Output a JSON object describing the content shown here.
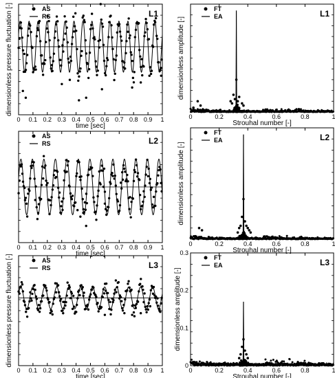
{
  "chart_data": [
    {
      "id": "L1-time",
      "type": "scatter",
      "title": "L1",
      "xlabel": "time [sec]",
      "ylabel": "dimensionless pressure fluctuation [-]",
      "xlim": [
        0,
        1
      ],
      "ylim": [
        -0.8,
        0.5
      ],
      "xticks": [
        0,
        0.1,
        0.2,
        0.3,
        0.4,
        0.5,
        0.6,
        0.7,
        0.8,
        0.9,
        1
      ],
      "xtick_labels": [
        "0",
        "0.1",
        "0.2",
        "0.3",
        "0.4",
        "0.5",
        "0.6",
        "0.7",
        "0.8",
        "0.9",
        "1"
      ],
      "legend": [
        "AS",
        "RS"
      ],
      "legend_position": "top-left",
      "series": [
        {
          "name": "AS",
          "style": "dots",
          "f": 16,
          "amp": 0.3,
          "noise": 0.16,
          "n": 200,
          "seed": 11,
          "outliers": [
            [
              0.03,
              -0.52
            ],
            [
              0.05,
              -0.6
            ],
            [
              0.42,
              -0.63
            ],
            [
              0.47,
              -0.6
            ],
            [
              0.58,
              -0.5
            ],
            [
              0.79,
              -0.48
            ],
            [
              0.85,
              -0.42
            ],
            [
              0.99,
              -0.25
            ]
          ]
        },
        {
          "name": "RS",
          "style": "line",
          "f": 16,
          "amp": 0.3,
          "phase": 0.5
        }
      ]
    },
    {
      "id": "L1-spec",
      "type": "scatter",
      "title": "L1",
      "xlabel": "Strouhal number [-]",
      "ylabel": "dimensionless amplitude [-]",
      "xlim": [
        0,
        1
      ],
      "ylim": [
        0,
        0.5
      ],
      "xticks": [
        0,
        0.2,
        0.4,
        0.6,
        0.8,
        1
      ],
      "xtick_labels": [
        "0",
        "0.2",
        "0.4",
        "0.6",
        "0.8",
        "1"
      ],
      "legend": [
        "FT",
        "EA"
      ],
      "legend_position": "top-left",
      "peak": 0.32,
      "peak_height": 0.47,
      "seed": 21,
      "points": [
        [
          0.32,
          0.15
        ],
        [
          0.3,
          0.08
        ],
        [
          0.34,
          0.07
        ],
        [
          0.31,
          0.06
        ],
        [
          0.33,
          0.05
        ],
        [
          0.28,
          0.05
        ],
        [
          0.05,
          0.05
        ],
        [
          0.07,
          0.03
        ],
        [
          0.02,
          0.02
        ],
        [
          0.36,
          0.04
        ],
        [
          0.37,
          0.03
        ],
        [
          0.29,
          0.04
        ]
      ]
    },
    {
      "id": "L2-time",
      "type": "scatter",
      "title": "L2",
      "xlabel": "time [sec]",
      "ylabel": "",
      "xlim": [
        0,
        1
      ],
      "ylim": [
        -0.6,
        0.6
      ],
      "xticks": [
        0,
        0.1,
        0.2,
        0.3,
        0.4,
        0.5,
        0.6,
        0.7,
        0.8,
        0.9,
        1
      ],
      "xtick_labels": [
        "0",
        "0.1",
        "0.2",
        "0.3",
        "0.4",
        "0.5",
        "0.6",
        "0.7",
        "0.8",
        "0.9",
        "1"
      ],
      "legend": [
        "AS",
        "RS"
      ],
      "legend_position": "top-left",
      "series": [
        {
          "name": "AS",
          "style": "dots",
          "f": 12.5,
          "amp": 0.22,
          "noise": 0.13,
          "n": 200,
          "seed": 31,
          "outliers": [
            [
              0.43,
              -0.32
            ],
            [
              0.45,
              -0.28
            ],
            [
              0.47,
              -0.42
            ],
            [
              0.41,
              -0.25
            ],
            [
              0.6,
              -0.18
            ]
          ]
        },
        {
          "name": "RS",
          "style": "line",
          "f": 12.5,
          "amp": 0.3,
          "phase": 0.3
        }
      ]
    },
    {
      "id": "L2-spec",
      "type": "scatter",
      "title": "L2",
      "xlabel": "Strouhal number [-]",
      "ylabel": "dimensionless amplitude [-]",
      "xlim": [
        0,
        1
      ],
      "ylim": [
        0,
        0.5
      ],
      "xticks": [
        0,
        0.2,
        0.4,
        0.6,
        0.8,
        1
      ],
      "xtick_labels": [
        "0",
        "0.2",
        "0.4",
        "0.6",
        "0.8",
        "1"
      ],
      "legend": [
        "FT",
        "EA"
      ],
      "legend_position": "top-left",
      "peak": 0.37,
      "peak_height": 0.47,
      "seed": 41,
      "points": [
        [
          0.37,
          0.18
        ],
        [
          0.36,
          0.1
        ],
        [
          0.38,
          0.08
        ],
        [
          0.35,
          0.06
        ],
        [
          0.39,
          0.06
        ],
        [
          0.4,
          0.05
        ],
        [
          0.06,
          0.05
        ],
        [
          0.08,
          0.04
        ],
        [
          0.34,
          0.05
        ],
        [
          0.41,
          0.04
        ],
        [
          0.33,
          0.03
        ],
        [
          0.42,
          0.03
        ]
      ]
    },
    {
      "id": "L3-time",
      "type": "scatter",
      "title": "L3",
      "xlabel": "time [sec]",
      "ylabel": "dimensionless pressure fluctuation [-]",
      "xlim": [
        0,
        1
      ],
      "ylim": [
        -0.8,
        0.5
      ],
      "xticks": [
        0,
        0.1,
        0.2,
        0.3,
        0.4,
        0.5,
        0.6,
        0.7,
        0.8,
        0.9,
        1
      ],
      "xtick_labels": [
        "0",
        "0.1",
        "0.2",
        "0.3",
        "0.4",
        "0.5",
        "0.6",
        "0.7",
        "0.8",
        "0.9",
        "1"
      ],
      "legend": [
        "AS",
        "RS"
      ],
      "legend_position": "top-left",
      "series": [
        {
          "name": "AS",
          "style": "dots",
          "f": 12,
          "amp": 0.13,
          "noise": 0.09,
          "n": 200,
          "seed": 51,
          "outliers": [
            [
              0.31,
              -0.18
            ],
            [
              0.6,
              -0.2
            ],
            [
              0.79,
              -0.2
            ],
            [
              0.85,
              -0.18
            ],
            [
              0.98,
              -0.15
            ]
          ]
        },
        {
          "name": "RS",
          "style": "line",
          "f": 12,
          "amp": 0.13,
          "phase": 0.4
        }
      ]
    },
    {
      "id": "L3-spec",
      "type": "scatter",
      "title": "L3",
      "xlabel": "Strouhal number [-]",
      "ylabel": "dimensionless amplitude [-]",
      "xlim": [
        0,
        1
      ],
      "ylim": [
        0,
        0.3
      ],
      "yticks": [
        0,
        0.1,
        0.2,
        0.3
      ],
      "ytick_labels": [
        "0",
        "0.1",
        "0.2",
        "0.3"
      ],
      "xticks": [
        0,
        0.2,
        0.4,
        0.6,
        0.8,
        1
      ],
      "xtick_labels": [
        "0",
        "0.2",
        "0.4",
        "0.6",
        "0.8",
        "1"
      ],
      "legend": [
        "FT",
        "EA"
      ],
      "legend_position": "top-left",
      "peak": 0.37,
      "peak_height": 0.17,
      "seed": 61,
      "points": [
        [
          0.37,
          0.07
        ],
        [
          0.36,
          0.05
        ],
        [
          0.38,
          0.04
        ],
        [
          0.35,
          0.03
        ],
        [
          0.39,
          0.03
        ],
        [
          0.34,
          0.02
        ],
        [
          0.4,
          0.02
        ]
      ]
    }
  ]
}
